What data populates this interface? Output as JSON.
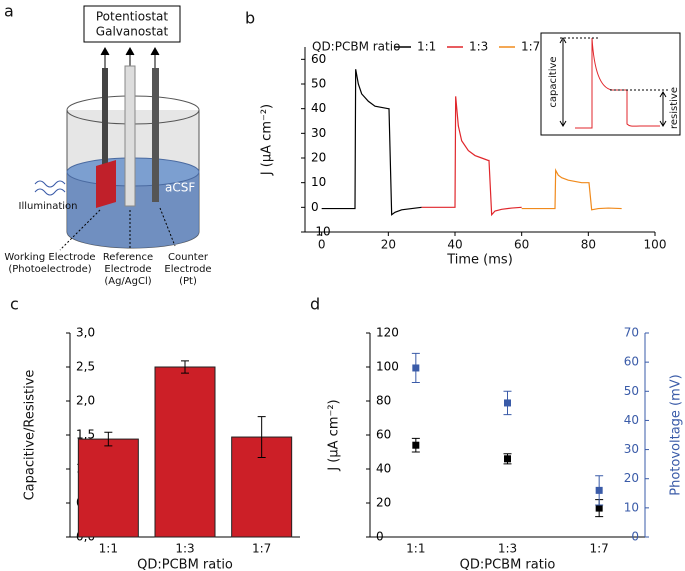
{
  "diagram": {
    "panel": "a",
    "instrument": [
      "Potentiostat",
      "Galvanostat"
    ],
    "medium": "aCSF",
    "light": "Illumination",
    "working": [
      "Working Electrode",
      "(Photoelectrode)"
    ],
    "reference": [
      "Reference",
      "Electrode",
      "(Ag/AgCl)"
    ],
    "counter": [
      "Counter",
      "Electrode",
      "(Pt)"
    ]
  },
  "chart_data": [
    {
      "type": "line",
      "panel": "b",
      "xlabel": "Time (ms)",
      "ylabel": "J (μA cm⁻²)",
      "legend_title": "QD:PCBM ratio",
      "annotations": [
        "capacitive",
        "resistive"
      ],
      "xlim": [
        -5,
        100
      ],
      "xticks": [
        0,
        20,
        40,
        60,
        80,
        100
      ],
      "ylim": [
        -10,
        65
      ],
      "yticks": [
        -10,
        0,
        10,
        20,
        30,
        40,
        50,
        60
      ],
      "series": [
        {
          "name": "1:1",
          "color": "#000000",
          "x": [
            0,
            5,
            10,
            10.2,
            11,
            12,
            14,
            16,
            18,
            20,
            20.2,
            21,
            22,
            24,
            27,
            30
          ],
          "values": [
            -0.5,
            -0.5,
            -0.5,
            56,
            50,
            46,
            43,
            41,
            40.5,
            40,
            40,
            -3,
            -2,
            -1,
            -0.5,
            0
          ]
        },
        {
          "name": "1:3",
          "color": "#e0262b",
          "x": [
            30,
            35,
            40,
            40.2,
            41,
            42,
            44,
            46,
            48,
            50,
            50.2,
            51,
            52,
            54,
            57,
            60
          ],
          "values": [
            0,
            0,
            0,
            45,
            33,
            27,
            23,
            21,
            20,
            19,
            19,
            -3,
            -1.5,
            -0.8,
            -0.3,
            0
          ]
        },
        {
          "name": "1:7",
          "color": "#f08a1c",
          "x": [
            60,
            65,
            70,
            70.2,
            71,
            72,
            74,
            76,
            78,
            80,
            80.2,
            81,
            83,
            86,
            90
          ],
          "values": [
            -0.5,
            -0.5,
            -0.5,
            15,
            13,
            12,
            11,
            10.5,
            10,
            10,
            10,
            -1,
            -0.5,
            -0.3,
            -0.5
          ]
        }
      ]
    },
    {
      "type": "bar",
      "panel": "c",
      "xlabel": "QD:PCBM ratio",
      "ylabel": "Capacitive/Resistive",
      "categories": [
        "1:1",
        "1:3",
        "1:7"
      ],
      "values": [
        1.44,
        2.5,
        1.47
      ],
      "errors": [
        0.1,
        0.09,
        0.3
      ],
      "color": "#cc1f27",
      "ylim": [
        0,
        3
      ],
      "yticks": [
        {
          "value": 0,
          "label": "0,0"
        },
        {
          "value": 0.5,
          "label": "0,5"
        },
        {
          "value": 1,
          "label": "1,0"
        },
        {
          "value": 1.5,
          "label": "1,5"
        },
        {
          "value": 2,
          "label": "2,0"
        },
        {
          "value": 2.5,
          "label": "2,5"
        },
        {
          "value": 3,
          "label": "3,0"
        }
      ]
    },
    {
      "type": "scatter",
      "panel": "d",
      "xlabel": "QD:PCBM ratio",
      "ylabel": "J (μA cm⁻²)",
      "y2label": "Photovoltage (mV)",
      "categories": [
        "1:1",
        "1:3",
        "1:7"
      ],
      "ylim": [
        0,
        120
      ],
      "yticks": [
        0,
        20,
        40,
        60,
        80,
        100,
        120
      ],
      "y2lim": [
        0,
        70
      ],
      "y2ticks": [
        0,
        10,
        20,
        30,
        40,
        50,
        60,
        70
      ],
      "series": [
        {
          "color": "#000000",
          "values": [
            54,
            46,
            17
          ],
          "errors": [
            4,
            3,
            5
          ]
        },
        {
          "color": "#3a5ba8",
          "axis": "y2",
          "values": [
            58,
            46,
            16
          ],
          "errors": [
            5,
            4,
            5
          ]
        }
      ]
    }
  ]
}
